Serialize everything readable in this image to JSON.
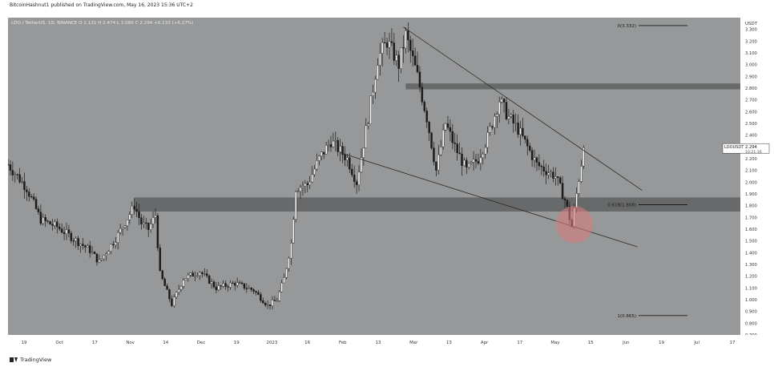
{
  "header": {
    "published_by": "BitcoinHashnut1 published on TradingView.com, May 16, 2023 15:36 UTC+2"
  },
  "legend": {
    "symbol_line": "LDO / TetherUS, 1D, BINANCE  O 2.131  H 2.474  L 2.080  C 2.294  +0.133 (+6.27%)"
  },
  "price_axis": {
    "currency": "USDT",
    "labels": [
      "3.300",
      "3.200",
      "3.100",
      "3.000",
      "2.900",
      "2.800",
      "2.700",
      "2.600",
      "2.500",
      "2.400",
      "2.300",
      "2.200",
      "2.100",
      "2.000",
      "1.900",
      "1.800",
      "1.700",
      "1.600",
      "1.500",
      "1.400",
      "1.300",
      "1.200",
      "1.100",
      "1.000",
      "0.900",
      "0.800",
      "0.700"
    ],
    "current_tag": "LDOUSDT",
    "current_price": "2.294",
    "countdown": "10:21:16"
  },
  "time_axis": {
    "labels": [
      "19",
      "Oct",
      "17",
      "Nov",
      "14",
      "Dec",
      "19",
      "2023",
      "16",
      "Feb",
      "13",
      "Mar",
      "13",
      "Apr",
      "17",
      "May",
      "15",
      "Jun",
      "19",
      "Jul",
      "17"
    ]
  },
  "fib_labels": {
    "top": "0(3.332)",
    "mid": "0.618(1.808)",
    "bottom": "1(0.865)"
  },
  "footer": {
    "brand": "TradingView"
  },
  "colors": {
    "chart_bg": "#979899",
    "zone": "#5f6062",
    "candle_up": "#ffffff",
    "candle_down": "#1b1b1b",
    "trendline": "#2a2a2a",
    "circle": "#d97b7b"
  },
  "chart_data": {
    "type": "candlestick",
    "title": "",
    "xlabel": "",
    "ylabel": "",
    "ylim": [
      0.7,
      3.4
    ],
    "x_range": [
      "2022-09-12",
      "2023-07-22"
    ],
    "resistance_zone": [
      2.79,
      2.84
    ],
    "support_zone": [
      1.75,
      1.87
    ],
    "trendlines": [
      {
        "from": [
          "2023-02-28",
          3.32
        ],
        "to": [
          "2023-06-10",
          1.93
        ]
      },
      {
        "from": [
          "2023-02-01",
          2.25
        ],
        "to": [
          "2023-06-08",
          1.45
        ]
      }
    ],
    "fib_levels": [
      {
        "ratio": 0,
        "price": 3.332
      },
      {
        "ratio": 0.618,
        "price": 1.808
      },
      {
        "ratio": 1,
        "price": 0.865
      }
    ],
    "highlight_circle": {
      "date": "2023-05-12",
      "price": 1.64
    },
    "last_price": 2.294,
    "waypoints": [
      [
        "2022-09-12",
        2.15
      ],
      [
        "2022-09-20",
        1.95
      ],
      [
        "2022-09-26",
        1.68
      ],
      [
        "2022-10-03",
        1.62
      ],
      [
        "2022-10-10",
        1.52
      ],
      [
        "2022-10-17",
        1.42
      ],
      [
        "2022-10-21",
        1.32
      ],
      [
        "2022-10-28",
        1.52
      ],
      [
        "2022-11-05",
        1.8
      ],
      [
        "2022-11-08",
        1.65
      ],
      [
        "2022-11-11",
        1.6
      ],
      [
        "2022-11-14",
        1.72
      ],
      [
        "2022-11-16",
        1.22
      ],
      [
        "2022-11-21",
        0.96
      ],
      [
        "2022-11-26",
        1.18
      ],
      [
        "2022-12-03",
        1.24
      ],
      [
        "2022-12-10",
        1.1
      ],
      [
        "2022-12-18",
        1.14
      ],
      [
        "2022-12-26",
        1.08
      ],
      [
        "2023-01-01",
        0.95
      ],
      [
        "2023-01-05",
        1.0
      ],
      [
        "2023-01-08",
        1.18
      ],
      [
        "2023-01-11",
        1.48
      ],
      [
        "2023-01-13",
        1.95
      ],
      [
        "2023-01-18",
        1.98
      ],
      [
        "2023-01-23",
        2.2
      ],
      [
        "2023-01-28",
        2.35
      ],
      [
        "2023-02-04",
        2.2
      ],
      [
        "2023-02-08",
        2.0
      ],
      [
        "2023-02-13",
        2.55
      ],
      [
        "2023-02-17",
        3.05
      ],
      [
        "2023-02-21",
        3.2
      ],
      [
        "2023-02-26",
        3.0
      ],
      [
        "2023-03-01",
        3.25
      ],
      [
        "2023-03-06",
        2.9
      ],
      [
        "2023-03-10",
        2.55
      ],
      [
        "2023-03-14",
        2.1
      ],
      [
        "2023-03-18",
        2.5
      ],
      [
        "2023-03-22",
        2.3
      ],
      [
        "2023-03-27",
        2.1
      ],
      [
        "2023-04-01",
        2.2
      ],
      [
        "2023-04-05",
        2.38
      ],
      [
        "2023-04-10",
        2.7
      ],
      [
        "2023-04-14",
        2.55
      ],
      [
        "2023-04-18",
        2.45
      ],
      [
        "2023-04-22",
        2.3
      ],
      [
        "2023-04-26",
        2.15
      ],
      [
        "2023-04-30",
        2.1
      ],
      [
        "2023-05-04",
        2.05
      ],
      [
        "2023-05-08",
        1.85
      ],
      [
        "2023-05-11",
        1.62
      ],
      [
        "2023-05-13",
        1.9
      ],
      [
        "2023-05-15",
        2.16
      ],
      [
        "2023-05-16",
        2.29
      ]
    ]
  }
}
